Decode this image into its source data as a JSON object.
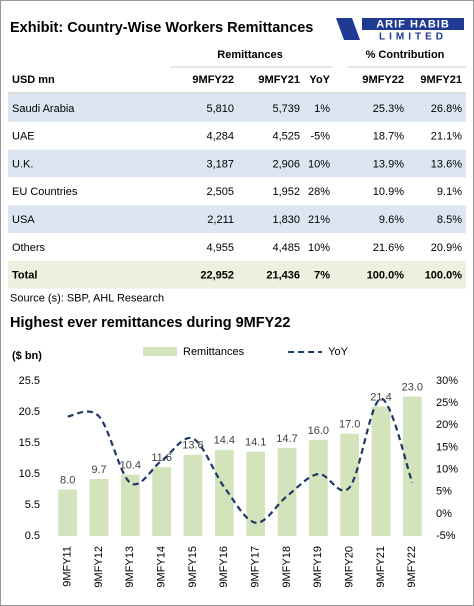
{
  "header": {
    "title": "Exhibit: Country-Wise Workers Remittances",
    "logo_top": "ARIF HABIB",
    "logo_bottom": "LIMITED"
  },
  "table": {
    "group_headers": [
      "Remittances",
      "% Contribution"
    ],
    "columns": [
      "USD mn",
      "9MFY22",
      "9MFY21",
      "YoY",
      "9MFY22",
      "9MFY21"
    ],
    "rows": [
      [
        "Saudi Arabia",
        "5,810",
        "5,739",
        "1%",
        "25.3%",
        "26.8%"
      ],
      [
        "UAE",
        "4,284",
        "4,525",
        "-5%",
        "18.7%",
        "21.1%"
      ],
      [
        "U.K.",
        "3,187",
        "2,906",
        "10%",
        "13.9%",
        "13.6%"
      ],
      [
        "EU Countries",
        "2,505",
        "1,952",
        "28%",
        "10.9%",
        "9.1%"
      ],
      [
        "USA",
        "2,211",
        "1,830",
        "21%",
        "9.6%",
        "8.5%"
      ],
      [
        "Others",
        "4,955",
        "4,485",
        "10%",
        "21.6%",
        "20.9%"
      ]
    ],
    "total": [
      "Total",
      "22,952",
      "21,436",
      "7%",
      "100.0%",
      "100.0%"
    ]
  },
  "source": "Source (s): SBP, AHL Research",
  "chart_data": {
    "type": "bar-line",
    "title": "Highest ever remittances during 9MFY22",
    "y_label": "($ bn)",
    "categories": [
      "9MFY11",
      "9MFY12",
      "9MFY13",
      "9MFY14",
      "9MFY15",
      "9MFY16",
      "9MFY17",
      "9MFY18",
      "9MFY19",
      "9MFY20",
      "9MFY21",
      "9MFY22"
    ],
    "series": [
      {
        "name": "Remittances",
        "type": "bar",
        "color": "#d3e4bd",
        "values": [
          8.0,
          9.7,
          10.4,
          11.6,
          13.6,
          14.4,
          14.1,
          14.7,
          16.0,
          17.0,
          21.4,
          23.0
        ],
        "value_labels": [
          "8.0",
          "9.7",
          "10.4",
          "11.6",
          "13.6",
          "14.4",
          "14.1",
          "14.7",
          "16.0",
          "17.0",
          "21.4",
          "23.0"
        ]
      },
      {
        "name": "YoY",
        "type": "line",
        "axis": "y2",
        "color": "#1f3864",
        "dashed": true,
        "values": [
          22,
          22,
          7,
          12,
          17,
          6,
          -2,
          4,
          9,
          6,
          26,
          7
        ]
      }
    ],
    "ylim": [
      0.5,
      25.5
    ],
    "yticks": [
      0.5,
      5.5,
      10.5,
      15.5,
      20.5,
      25.5
    ],
    "y2lim": [
      -5,
      30
    ],
    "y2ticks": [
      {
        "value": -5,
        "label": "-5%"
      },
      {
        "value": 0,
        "label": "0%"
      },
      {
        "value": 5,
        "label": "5%"
      },
      {
        "value": 10,
        "label": "10%"
      },
      {
        "value": 15,
        "label": "15%"
      },
      {
        "value": 20,
        "label": "20%"
      },
      {
        "value": 25,
        "label": "25%"
      },
      {
        "value": 30,
        "label": "30%"
      }
    ],
    "legend": "top"
  }
}
